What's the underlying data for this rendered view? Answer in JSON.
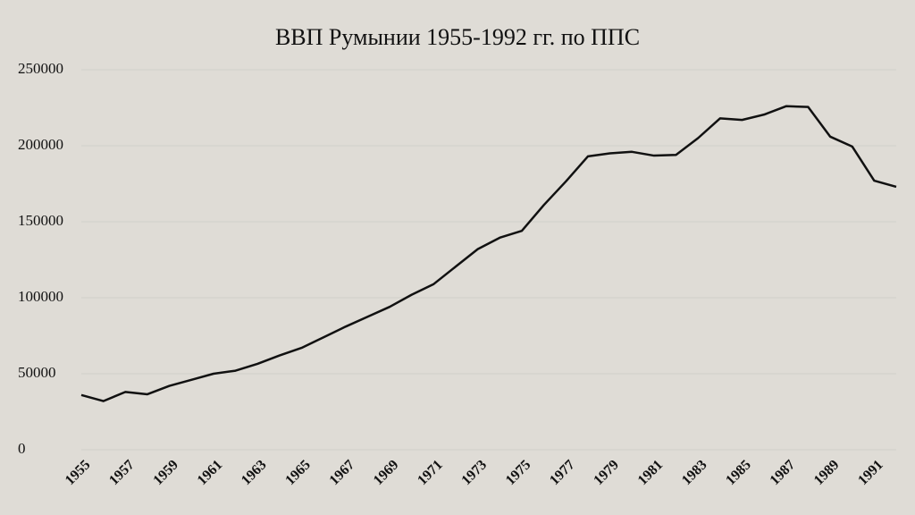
{
  "chart_data": {
    "type": "line",
    "title": "ВВП Румынии 1955-1992 гг. по ППС",
    "x": [
      1955,
      1956,
      1957,
      1958,
      1959,
      1960,
      1961,
      1962,
      1963,
      1964,
      1965,
      1966,
      1967,
      1968,
      1969,
      1970,
      1971,
      1972,
      1973,
      1974,
      1975,
      1976,
      1977,
      1978,
      1979,
      1980,
      1981,
      1982,
      1983,
      1984,
      1985,
      1986,
      1987,
      1988,
      1989,
      1990,
      1991,
      1992
    ],
    "series": [
      {
        "name": "ВВП",
        "color": "#111111",
        "values": [
          36000,
          32000,
          38000,
          36500,
          42000,
          46000,
          50000,
          52000,
          56500,
          62000,
          67000,
          74000,
          81000,
          87500,
          94000,
          102000,
          109000,
          120500,
          132000,
          139500,
          144000,
          161000,
          176500,
          193000,
          195000,
          196000,
          193500,
          194000,
          205000,
          218000,
          217000,
          220500,
          226000,
          225500,
          206000,
          199500,
          177000,
          173000
        ]
      }
    ],
    "xlim": [
      1955,
      1992
    ],
    "xticks": [
      1955,
      1957,
      1959,
      1961,
      1963,
      1965,
      1967,
      1969,
      1971,
      1973,
      1975,
      1977,
      1979,
      1981,
      1983,
      1985,
      1987,
      1989,
      1991
    ],
    "ylim": [
      0,
      250000
    ],
    "yticks": [
      0,
      50000,
      100000,
      150000,
      200000,
      250000
    ],
    "grid": true
  }
}
